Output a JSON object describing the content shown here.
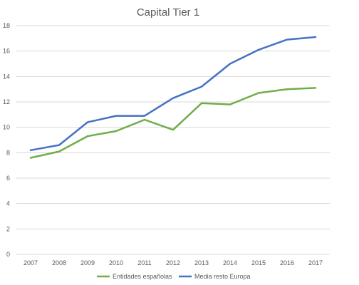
{
  "chart_data": {
    "type": "line",
    "title": "Capital Tier 1",
    "xlabel": "",
    "ylabel": "",
    "categories": [
      "2007",
      "2008",
      "2009",
      "2010",
      "2011",
      "2012",
      "2013",
      "2014",
      "2015",
      "2016",
      "2017"
    ],
    "series": [
      {
        "name": "Entidades españolas",
        "color": "#70AD47",
        "values": [
          7.6,
          8.1,
          9.3,
          9.7,
          10.6,
          9.8,
          11.9,
          11.8,
          12.7,
          13.0,
          13.1
        ]
      },
      {
        "name": "Media resto Europa",
        "color": "#4472C4",
        "values": [
          8.2,
          8.6,
          10.4,
          10.9,
          10.9,
          12.3,
          13.2,
          15.0,
          16.1,
          16.9,
          17.1
        ]
      }
    ],
    "ylim": [
      0,
      18
    ],
    "yticks": [
      0,
      2,
      4,
      6,
      8,
      10,
      12,
      14,
      16,
      18
    ],
    "grid": true,
    "legend_position": "bottom"
  }
}
